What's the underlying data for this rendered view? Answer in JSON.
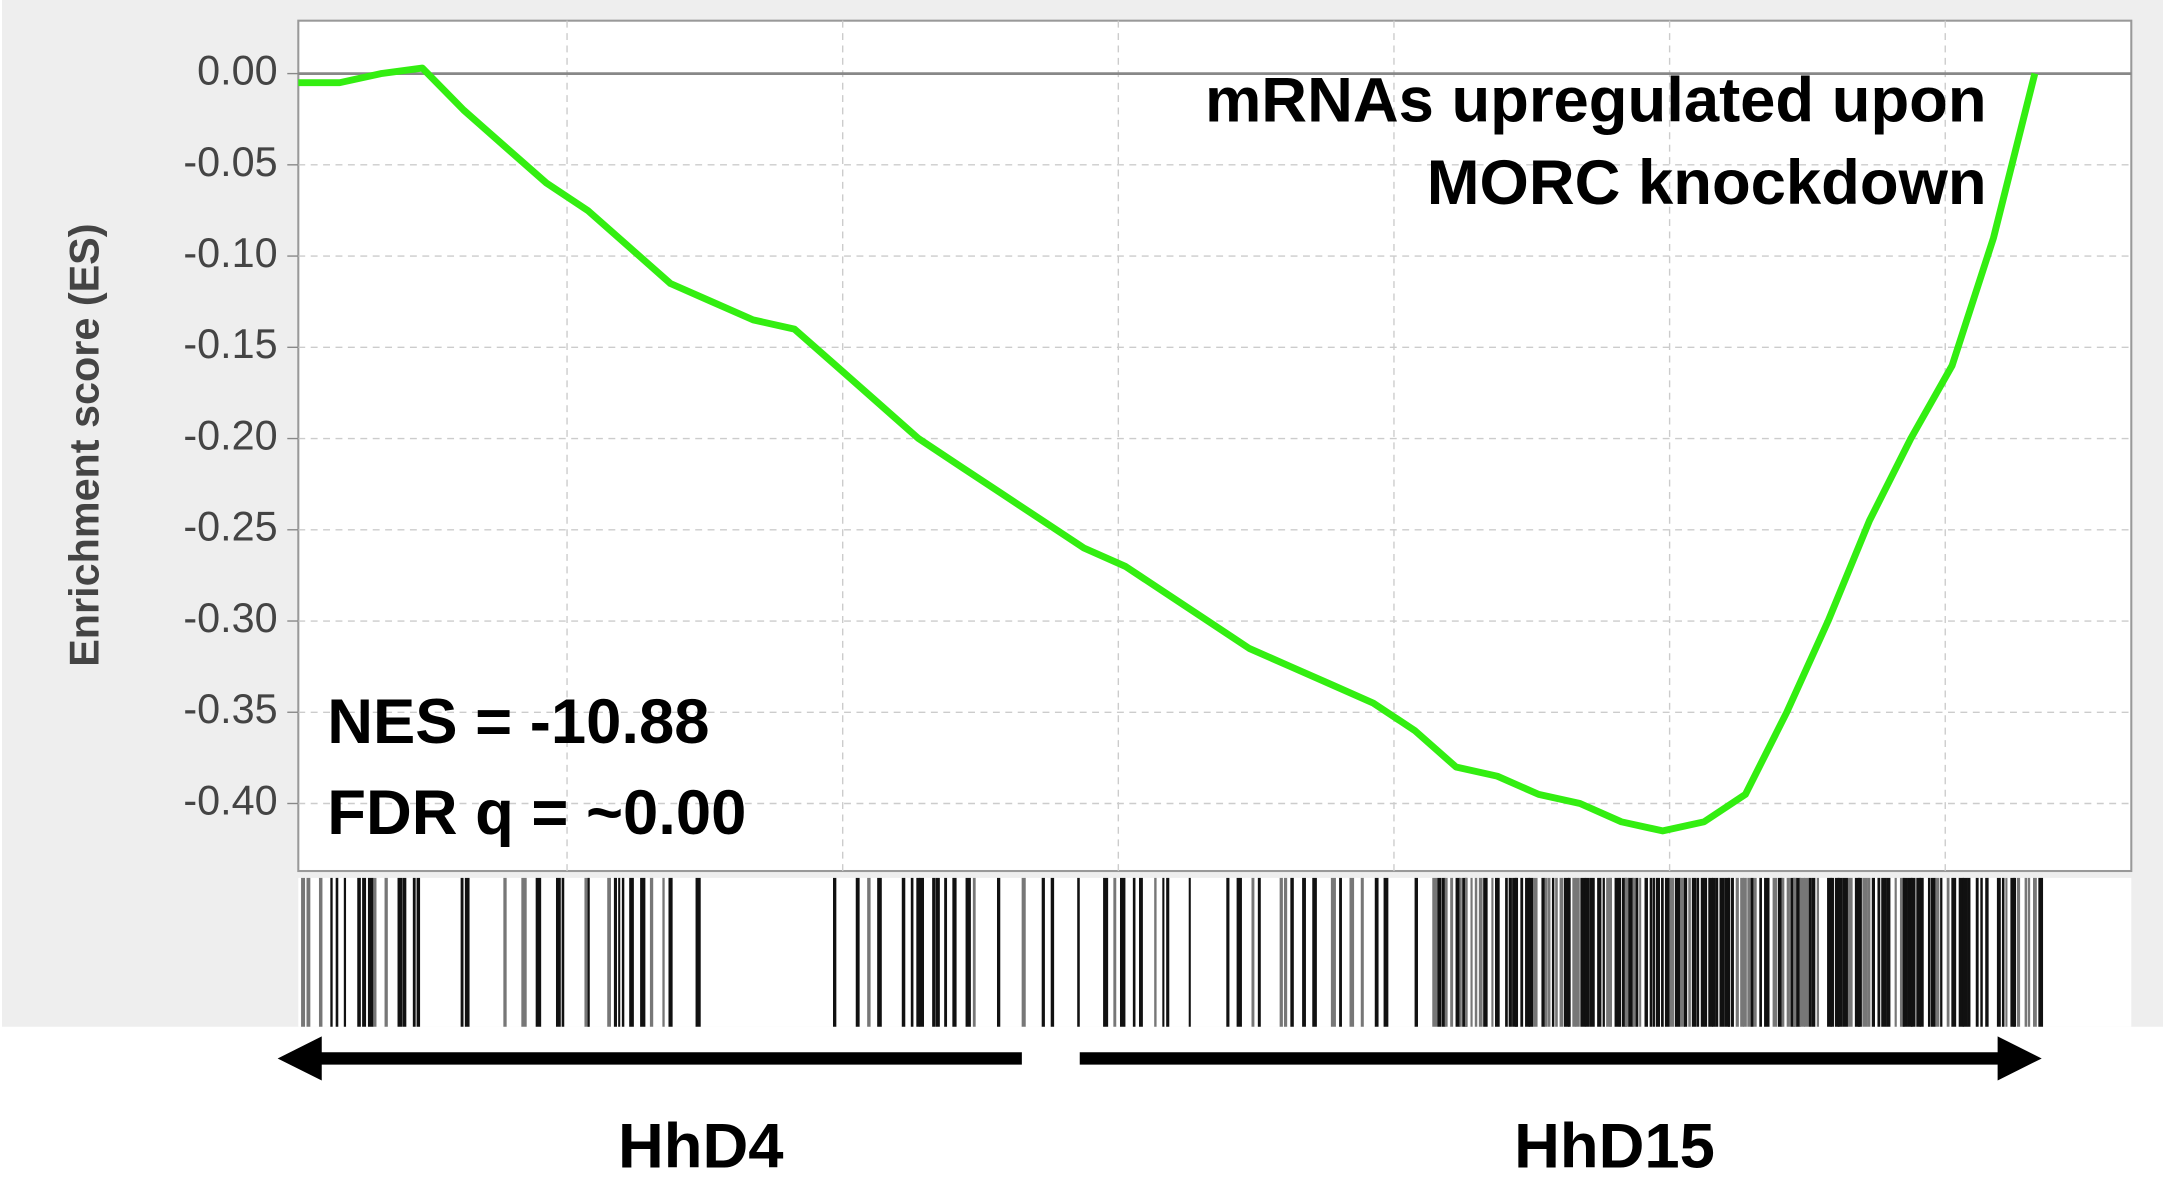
{
  "chart_data": {
    "type": "line",
    "y_label": "Enrichment score (ES)",
    "annotations": [
      "mRNAs upregulated upon",
      "MORC knockdown",
      "NES = -10.88",
      "FDR q = ~0.00"
    ],
    "group_labels": [
      "HhD4",
      "HhD15"
    ],
    "series": [
      {
        "color": "#33ee11",
        "values": [
          -0.005,
          -0.005,
          0,
          0.003,
          -0.02,
          -0.04,
          -0.06,
          -0.075,
          -0.095,
          -0.115,
          -0.125,
          -0.135,
          -0.14,
          -0.16,
          -0.18,
          -0.2,
          -0.215,
          -0.23,
          -0.245,
          -0.26,
          -0.27,
          -0.285,
          -0.3,
          -0.315,
          -0.325,
          -0.335,
          -0.345,
          -0.36,
          -0.38,
          -0.385,
          -0.395,
          -0.4,
          -0.41,
          -0.415,
          -0.41,
          -0.395,
          -0.35,
          -0.3,
          -0.245,
          -0.2,
          -0.16,
          -0.09,
          0
        ]
      }
    ],
    "ylim": [
      -0.437,
      0.029
    ],
    "yticks": [
      {
        "value": 0,
        "label": "0.00"
      },
      {
        "value": -0.05,
        "label": "-0.05"
      },
      {
        "value": -0.1,
        "label": "-0.10"
      },
      {
        "value": -0.15,
        "label": "-0.15"
      },
      {
        "value": -0.2,
        "label": "-0.20"
      },
      {
        "value": -0.25,
        "label": "-0.25"
      },
      {
        "value": -0.3,
        "label": "-0.30"
      },
      {
        "value": -0.35,
        "label": "-0.35"
      },
      {
        "value": -0.4,
        "label": "-0.40"
      }
    ],
    "grid": true
  }
}
